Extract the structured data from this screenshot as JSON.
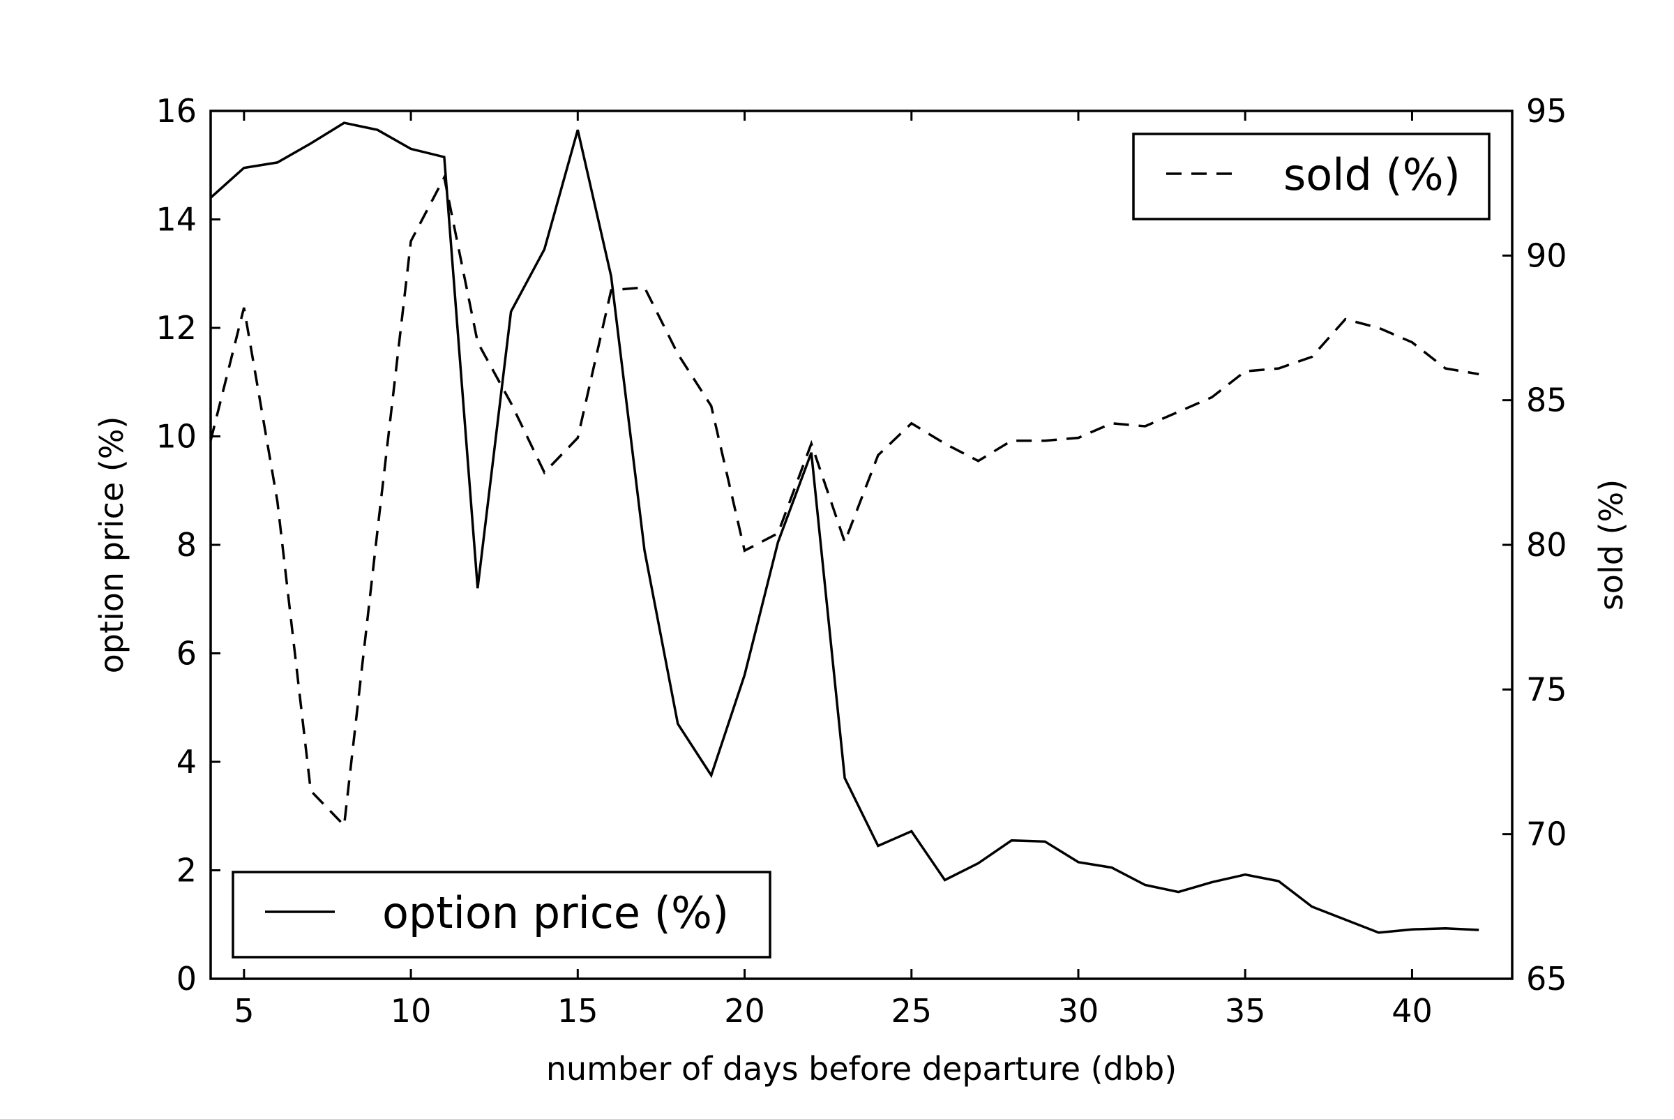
{
  "chart_data": {
    "type": "line",
    "title": "",
    "xlabel": "number of days before departure (dbb)",
    "ylabel_left": "option price (%)",
    "ylabel_right": "sold (%)",
    "xlim": [
      4,
      43
    ],
    "ylim_left": [
      0,
      16
    ],
    "ylim_right": [
      65,
      95
    ],
    "x_ticks": [
      5,
      10,
      15,
      20,
      25,
      30,
      35,
      40
    ],
    "y_ticks_left": [
      0,
      2,
      4,
      6,
      8,
      10,
      12,
      14,
      16
    ],
    "y_ticks_right": [
      65,
      70,
      75,
      80,
      85,
      90,
      95
    ],
    "grid": false,
    "x": [
      4,
      5,
      6,
      7,
      8,
      9,
      10,
      11,
      12,
      13,
      14,
      15,
      16,
      17,
      18,
      19,
      20,
      21,
      22,
      23,
      24,
      25,
      26,
      27,
      28,
      29,
      30,
      31,
      32,
      33,
      34,
      35,
      36,
      37,
      38,
      39,
      40,
      41,
      42
    ],
    "series": [
      {
        "name": "option price (%)",
        "axis": "left",
        "style": "solid",
        "color": "#000000",
        "legend_position": "lower-left",
        "values": [
          14.4,
          14.95,
          15.05,
          15.4,
          15.78,
          15.65,
          15.3,
          15.15,
          7.2,
          12.3,
          13.45,
          15.65,
          12.95,
          7.9,
          4.7,
          3.75,
          5.6,
          8.05,
          9.7,
          3.7,
          2.45,
          2.72,
          1.82,
          2.13,
          2.55,
          2.53,
          2.15,
          2.05,
          1.73,
          1.6,
          1.78,
          1.92,
          1.8,
          1.33,
          1.09,
          0.85,
          0.91,
          0.93,
          0.9
        ]
      },
      {
        "name": "sold (%)",
        "axis": "right",
        "style": "dashed",
        "color": "#000000",
        "legend_position": "top-right",
        "values": [
          83.6,
          88.2,
          81.5,
          71.5,
          70.3,
          80.5,
          90.5,
          92.7,
          87.0,
          84.9,
          82.5,
          83.7,
          88.8,
          88.9,
          86.6,
          84.8,
          79.8,
          80.4,
          83.5,
          80.1,
          83.1,
          84.2,
          83.5,
          82.9,
          83.6,
          83.6,
          83.7,
          84.2,
          84.1,
          84.6,
          85.1,
          86.0,
          86.1,
          86.5,
          87.8,
          87.5,
          87.0,
          86.1,
          85.9
        ]
      }
    ]
  }
}
